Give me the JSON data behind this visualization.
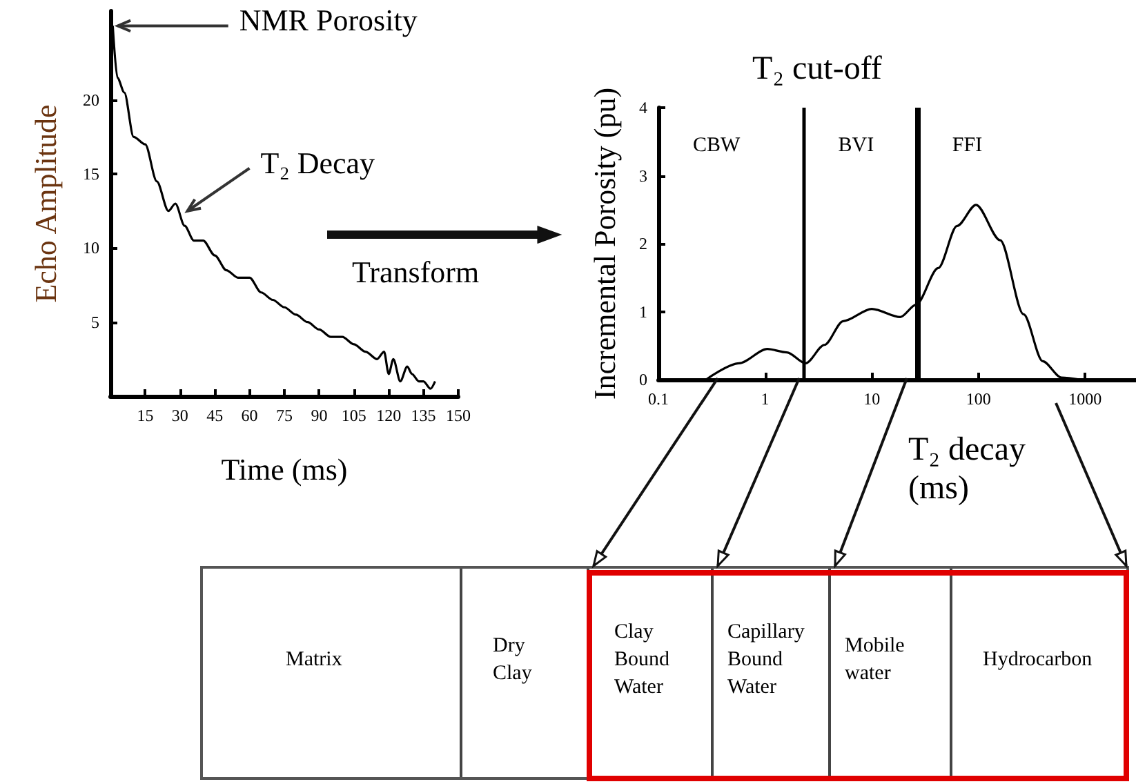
{
  "chart_data": [
    {
      "type": "line",
      "xlabel": "Time (ms)",
      "ylabel": "Echo Amplitude",
      "color": "#000000",
      "marker": "none",
      "x": [
        1,
        3,
        6,
        10,
        15,
        20,
        25,
        28,
        32,
        36,
        40,
        45,
        50,
        55,
        60,
        65,
        70,
        75,
        80,
        85,
        90,
        95,
        100,
        105,
        110,
        115,
        118,
        120,
        122,
        125,
        128,
        130,
        133,
        135,
        138,
        140
      ],
      "values": [
        25,
        21.5,
        20.5,
        17.5,
        17,
        14.5,
        12.5,
        13,
        11.5,
        10.5,
        10.5,
        9.5,
        8.5,
        8,
        8,
        7,
        6.5,
        6,
        5.5,
        5,
        4.5,
        4,
        4,
        3.5,
        3,
        2.5,
        3,
        1.5,
        2.5,
        1,
        2,
        1.5,
        1,
        1,
        0.5,
        1
      ],
      "xlim": [
        0,
        150
      ],
      "ylim": [
        0,
        26
      ],
      "xticks": [
        15,
        30,
        45,
        60,
        75,
        90,
        105,
        120,
        135,
        150
      ],
      "yticks": [
        5,
        10,
        15,
        20
      ],
      "annotations": [
        {
          "text": "NMR Porosity",
          "x": 2,
          "y": 25
        },
        {
          "text": "T₂ Decay",
          "x": 32,
          "y": 12.5
        },
        "Transform"
      ]
    },
    {
      "type": "line",
      "title": "T₂ cut-off",
      "xlabel": "T₂ decay\n(ms)",
      "ylabel": "Incremental Porosity (pu)",
      "color": "#000000",
      "marker": "none",
      "log": "x",
      "x": [
        0.28,
        0.57,
        1.05,
        1.6,
        2.4,
        3.6,
        5.4,
        10,
        18.5,
        26,
        42,
        63,
        95,
        160,
        265,
        400,
        600,
        900
      ],
      "values": [
        0,
        0.24,
        0.45,
        0.4,
        0.24,
        0.51,
        0.86,
        1.04,
        0.92,
        1.1,
        1.64,
        2.26,
        2.57,
        2.05,
        0.96,
        0.27,
        0.03,
        0
      ],
      "xlim": [
        0.1,
        3000
      ],
      "ylim": [
        0,
        4
      ],
      "xticks": [
        0.1,
        1,
        10,
        100,
        1000
      ],
      "yticks": [
        0,
        1,
        2,
        3,
        4
      ],
      "ref_lines": [
        {
          "axis": "x",
          "value": 2.3,
          "color": "#000000"
        },
        {
          "axis": "x",
          "value": 27,
          "color": "#000000"
        }
      ],
      "annotations": [
        "CBW",
        "BVI",
        "FFI"
      ]
    },
    {
      "type": "other",
      "annotations": [
        "Matrix",
        "Dry\nClay",
        "Clay\nBound\nWater",
        "Capillary\nBound\nWater",
        "Mobile\nwater",
        "Hydrocarbon"
      ]
    }
  ]
}
